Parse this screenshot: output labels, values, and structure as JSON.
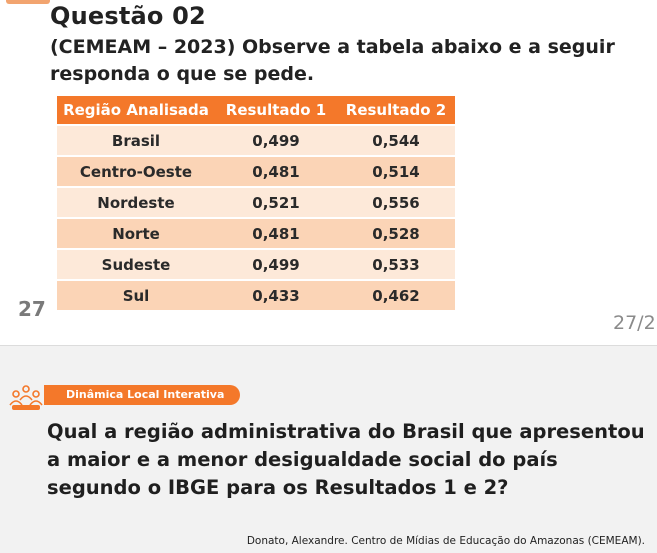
{
  "question": {
    "title": "Questão 02",
    "text": "(CEMEAM – 2023) Observe a tabela abaixo e a seguir responda o que se pede."
  },
  "table": {
    "headers": [
      "Região Analisada",
      "Resultado 1",
      "Resultado 2"
    ],
    "rows": [
      [
        "Brasil",
        "0,499",
        "0,544"
      ],
      [
        "Centro-Oeste",
        "0,481",
        "0,514"
      ],
      [
        "Nordeste",
        "0,521",
        "0,556"
      ],
      [
        "Norte",
        "0,481",
        "0,528"
      ],
      [
        "Sudeste",
        "0,499",
        "0,533"
      ],
      [
        "Sul",
        "0,433",
        "0,462"
      ]
    ]
  },
  "page_number_left": "27",
  "page_number_right": "27/2",
  "activity": {
    "label": "Dinâmica Local Interativa",
    "icon": "group-people-icon"
  },
  "main_question": "Qual a região administrativa do Brasil que apresentou a maior e a menor desigualdade social do país segundo o IBGE para os Resultados 1 e 2?",
  "credit": "Donato, Alexandre. Centro de Mídias de Educação do Amazonas (CEMEAM).",
  "colors": {
    "accent": "#f4782a",
    "row_light": "#fde9d9",
    "row_dark": "#fbd4b6",
    "tab": "#f2a46f"
  }
}
